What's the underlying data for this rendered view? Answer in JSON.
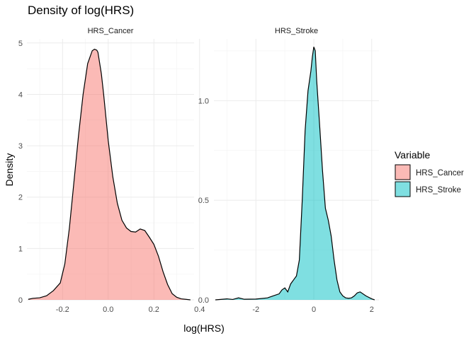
{
  "chart_data": {
    "type": "area",
    "title": "Density of log(HRS)",
    "xlabel": "log(HRS)",
    "ylabel": "Density",
    "grid": true,
    "legend": {
      "title": "Variable",
      "placement": "right",
      "entries": [
        {
          "name": "HRS_Cancer",
          "color": "#F8766D"
        },
        {
          "name": "HRS_Stroke",
          "color": "#00BFC4"
        }
      ]
    },
    "panels": [
      {
        "strip": "HRS_Cancer",
        "fill": "#F8766D",
        "xlim": [
          -0.356,
          0.376
        ],
        "ylim": [
          0,
          5.08
        ],
        "xticks": [
          -0.2,
          0.0,
          0.2,
          0.4
        ],
        "xtick_labels": [
          "-0.2",
          "0.0",
          "0.2",
          "0.4"
        ],
        "yticks": [
          0,
          1,
          2,
          3,
          4,
          5
        ],
        "ytick_labels": [
          "0",
          "1",
          "2",
          "3",
          "4",
          "5"
        ],
        "x": [
          -0.35,
          -0.33,
          -0.3,
          -0.27,
          -0.24,
          -0.21,
          -0.19,
          -0.17,
          -0.15,
          -0.13,
          -0.11,
          -0.09,
          -0.07,
          -0.06,
          -0.05,
          -0.045,
          -0.03,
          -0.02,
          0.0,
          0.02,
          0.04,
          0.06,
          0.08,
          0.1,
          0.12,
          0.14,
          0.16,
          0.18,
          0.2,
          0.22,
          0.24,
          0.26,
          0.28,
          0.3,
          0.32,
          0.34,
          0.36
        ],
        "y": [
          0.01,
          0.03,
          0.04,
          0.08,
          0.18,
          0.33,
          0.7,
          1.4,
          2.3,
          3.2,
          4.0,
          4.6,
          4.85,
          4.88,
          4.86,
          4.82,
          4.4,
          4.0,
          3.1,
          2.4,
          1.88,
          1.55,
          1.4,
          1.33,
          1.32,
          1.38,
          1.35,
          1.22,
          1.08,
          0.85,
          0.55,
          0.3,
          0.12,
          0.05,
          0.02,
          0.01,
          0.0
        ]
      },
      {
        "strip": "HRS_Stroke",
        "fill": "#00BFC4",
        "xlim": [
          -3.45,
          2.25
        ],
        "ylim": [
          0,
          1.31
        ],
        "xticks": [
          -2,
          0,
          2
        ],
        "xtick_labels": [
          "-2",
          "0",
          "2"
        ],
        "yticks": [
          0.0,
          0.5,
          1.0
        ],
        "ytick_labels": [
          "0.0",
          "0.5",
          "1.0"
        ],
        "x": [
          -3.4,
          -3.0,
          -2.8,
          -2.6,
          -2.4,
          -2.0,
          -1.6,
          -1.4,
          -1.2,
          -1.1,
          -1.0,
          -0.9,
          -0.8,
          -0.7,
          -0.6,
          -0.5,
          -0.4,
          -0.3,
          -0.2,
          -0.1,
          -0.05,
          0.0,
          0.05,
          0.1,
          0.2,
          0.3,
          0.4,
          0.5,
          0.6,
          0.7,
          0.8,
          0.9,
          1.0,
          1.1,
          1.2,
          1.3,
          1.4,
          1.5,
          1.6,
          1.8,
          2.0,
          2.1
        ],
        "y": [
          0.0,
          0.005,
          0.002,
          0.01,
          0.003,
          0.004,
          0.01,
          0.02,
          0.03,
          0.05,
          0.06,
          0.04,
          0.08,
          0.1,
          0.12,
          0.2,
          0.5,
          0.85,
          1.05,
          1.15,
          1.22,
          1.27,
          1.25,
          1.1,
          0.88,
          0.65,
          0.46,
          0.4,
          0.32,
          0.2,
          0.1,
          0.04,
          0.02,
          0.01,
          0.008,
          0.01,
          0.02,
          0.035,
          0.04,
          0.02,
          0.005,
          0.0
        ]
      }
    ]
  }
}
